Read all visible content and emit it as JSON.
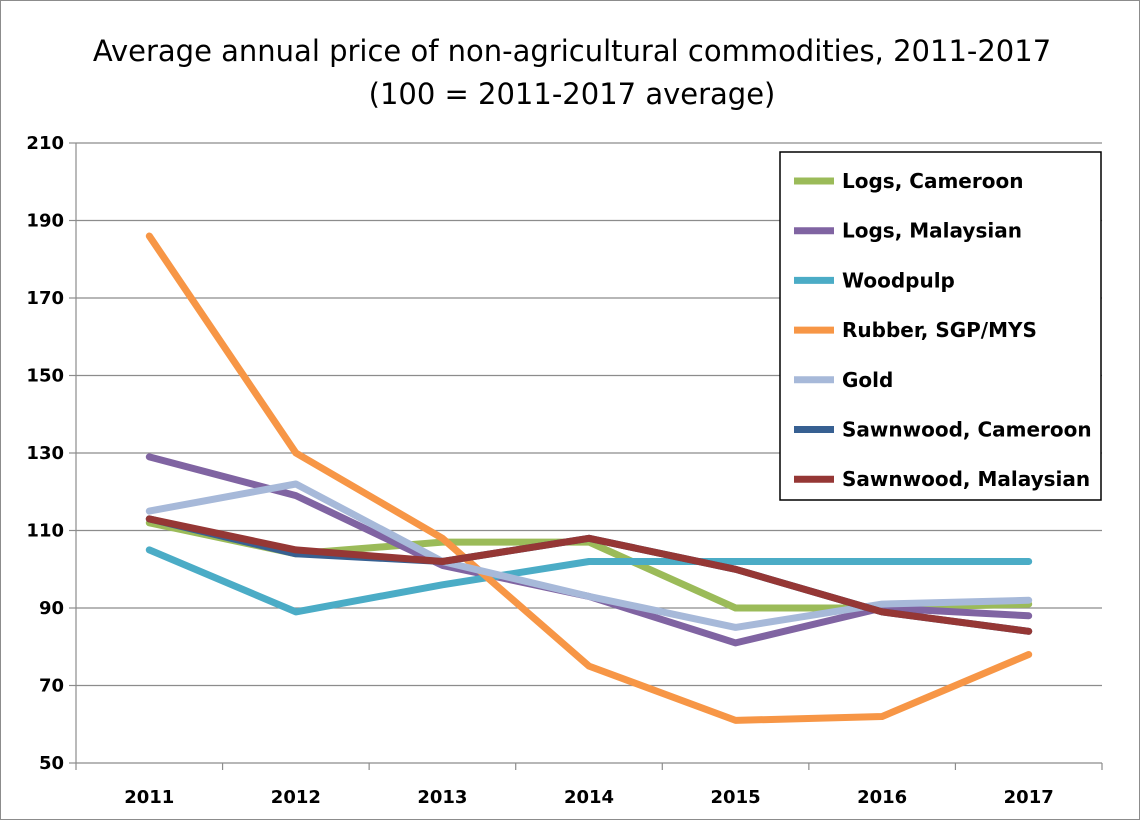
{
  "chart_data": {
    "type": "line",
    "title": "Average annual price of non-agricultural commodities, 2011-2017",
    "subtitle": "(100 = 2011-2017 average)",
    "xlabel": "",
    "ylabel": "",
    "x": [
      "2011",
      "2012",
      "2013",
      "2014",
      "2015",
      "2016",
      "2017"
    ],
    "ylim": [
      50,
      210
    ],
    "yticks": [
      50,
      70,
      90,
      110,
      130,
      150,
      170,
      190,
      210
    ],
    "grid": true,
    "legend_position": "top-right",
    "series": [
      {
        "name": "Logs, Cameroon",
        "color": "#9bbb59",
        "values": [
          112,
          104,
          107,
          107,
          90,
          90,
          91
        ]
      },
      {
        "name": "Logs, Malaysian",
        "color": "#8064a2",
        "values": [
          129,
          119,
          101,
          93,
          81,
          90,
          88
        ]
      },
      {
        "name": "Woodpulp",
        "color": "#4bacc6",
        "values": [
          105,
          89,
          96,
          102,
          102,
          102,
          102
        ]
      },
      {
        "name": "Rubber, SGP/MYS",
        "color": "#f79646",
        "values": [
          186,
          130,
          108,
          75,
          61,
          62,
          78
        ]
      },
      {
        "name": "Gold",
        "color": "#a7b9d9",
        "values": [
          115,
          122,
          102,
          93,
          85,
          91,
          92
        ]
      },
      {
        "name": "Sawnwood, Cameroon",
        "color": "#376092",
        "values": [
          113,
          104,
          102,
          108,
          100,
          89,
          84
        ]
      },
      {
        "name": "Sawnwood, Malaysian",
        "color": "#953735",
        "values": [
          113,
          105,
          102,
          108,
          100,
          89,
          84
        ]
      }
    ]
  }
}
